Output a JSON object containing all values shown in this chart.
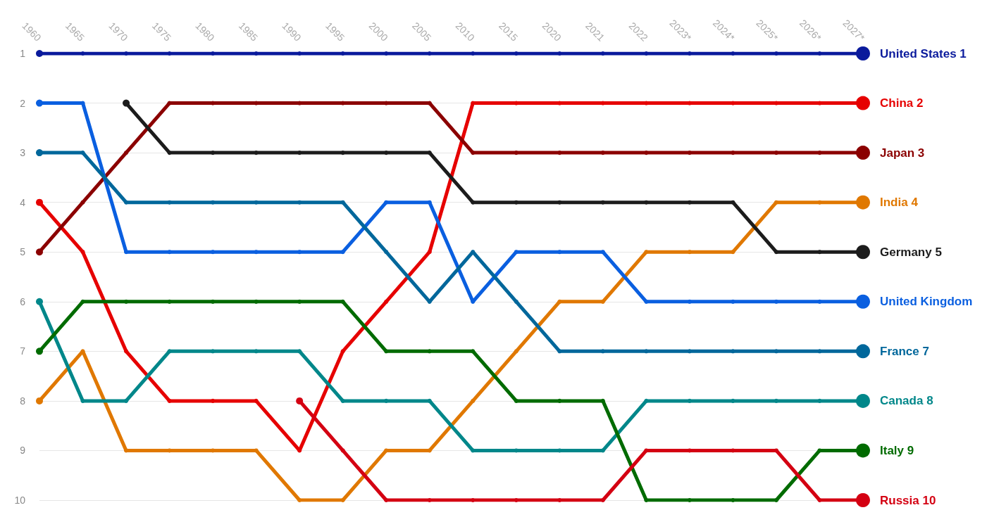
{
  "chart_data": {
    "type": "line",
    "categories": [
      "1960",
      "1965",
      "1970",
      "1975",
      "1980",
      "1985",
      "1990",
      "1995",
      "2000",
      "2005",
      "2010",
      "2015",
      "2020",
      "2021",
      "2022",
      "2023*",
      "2024*",
      "2025*",
      "2026*",
      "2027*"
    ],
    "ylim": [
      10,
      1
    ],
    "yticks": [
      1,
      2,
      3,
      4,
      5,
      6,
      7,
      8,
      9,
      10
    ],
    "grid": "y",
    "marker": "circle",
    "line_style": "solid",
    "legend": false,
    "series": [
      {
        "name": "United States",
        "color": "#0a1a9c",
        "values": [
          1,
          1,
          1,
          1,
          1,
          1,
          1,
          1,
          1,
          1,
          1,
          1,
          1,
          1,
          1,
          1,
          1,
          1,
          1,
          1
        ],
        "value_labels": [
          null,
          null,
          null,
          null,
          null,
          null,
          null,
          null,
          null,
          null,
          null,
          null,
          null,
          null,
          null,
          null,
          null,
          null,
          null,
          "1"
        ]
      },
      {
        "name": "China",
        "color": "#e60000",
        "values": [
          4,
          5,
          7,
          8,
          8,
          8,
          9,
          7,
          6,
          5,
          2,
          2,
          2,
          2,
          2,
          2,
          2,
          2,
          2,
          2
        ],
        "value_labels": [
          null,
          null,
          null,
          null,
          null,
          null,
          null,
          null,
          null,
          null,
          null,
          null,
          null,
          null,
          null,
          null,
          null,
          null,
          null,
          "2"
        ]
      },
      {
        "name": "Japan",
        "color": "#8b0000",
        "values": [
          5,
          4,
          3,
          2,
          2,
          2,
          2,
          2,
          2,
          2,
          3,
          3,
          3,
          3,
          3,
          3,
          3,
          3,
          3,
          3
        ],
        "value_labels": [
          null,
          null,
          null,
          null,
          null,
          null,
          null,
          null,
          null,
          null,
          null,
          null,
          null,
          null,
          null,
          null,
          null,
          null,
          null,
          "3"
        ]
      },
      {
        "name": "India",
        "color": "#e07800",
        "values": [
          8,
          7,
          9,
          9,
          9,
          9,
          10,
          10,
          9,
          9,
          8,
          7,
          6,
          6,
          5,
          5,
          5,
          4,
          4,
          4
        ],
        "value_labels": [
          null,
          null,
          null,
          null,
          null,
          null,
          null,
          null,
          null,
          null,
          null,
          null,
          null,
          null,
          null,
          null,
          null,
          null,
          null,
          "4"
        ]
      },
      {
        "name": "Germany",
        "color": "#1c1c1c",
        "values": [
          null,
          null,
          2,
          3,
          3,
          3,
          3,
          3,
          3,
          3,
          4,
          4,
          4,
          4,
          4,
          4,
          4,
          5,
          5,
          5
        ],
        "value_labels": [
          null,
          null,
          null,
          null,
          null,
          null,
          null,
          null,
          null,
          null,
          null,
          null,
          null,
          null,
          null,
          null,
          null,
          null,
          null,
          "5"
        ]
      },
      {
        "name": "United Kingdom",
        "color": "#0a5fe0",
        "values": [
          2,
          2,
          5,
          5,
          5,
          5,
          5,
          5,
          4,
          4,
          6,
          5,
          5,
          5,
          6,
          6,
          6,
          6,
          6,
          6
        ],
        "value_labels": [
          null,
          null,
          null,
          null,
          null,
          null,
          null,
          null,
          null,
          null,
          null,
          null,
          null,
          null,
          null,
          null,
          null,
          null,
          null,
          null
        ]
      },
      {
        "name": "France",
        "color": "#00679b",
        "values": [
          3,
          3,
          4,
          4,
          4,
          4,
          4,
          4,
          5,
          6,
          5,
          6,
          7,
          7,
          7,
          7,
          7,
          7,
          7,
          7
        ],
        "value_labels": [
          null,
          null,
          null,
          null,
          null,
          null,
          null,
          null,
          null,
          null,
          null,
          null,
          null,
          null,
          null,
          null,
          null,
          null,
          null,
          "7"
        ]
      },
      {
        "name": "Canada",
        "color": "#00878a",
        "values": [
          6,
          8,
          8,
          7,
          7,
          7,
          7,
          8,
          8,
          8,
          9,
          9,
          9,
          9,
          8,
          8,
          8,
          8,
          8,
          8
        ],
        "value_labels": [
          null,
          null,
          null,
          null,
          null,
          null,
          null,
          null,
          null,
          null,
          null,
          null,
          null,
          null,
          null,
          null,
          null,
          null,
          null,
          "8"
        ]
      },
      {
        "name": "Italy",
        "color": "#006b00",
        "values": [
          7,
          6,
          6,
          6,
          6,
          6,
          6,
          6,
          7,
          7,
          7,
          8,
          8,
          8,
          10,
          10,
          10,
          10,
          9,
          9
        ],
        "value_labels": [
          null,
          null,
          null,
          null,
          null,
          null,
          null,
          null,
          null,
          null,
          null,
          null,
          null,
          null,
          null,
          null,
          null,
          null,
          null,
          "9"
        ]
      },
      {
        "name": "Russia",
        "color": "#d40012",
        "values": [
          null,
          null,
          null,
          null,
          null,
          null,
          8,
          9,
          10,
          10,
          10,
          10,
          10,
          10,
          9,
          9,
          9,
          9,
          10,
          10
        ],
        "value_labels": [
          null,
          null,
          null,
          null,
          null,
          null,
          null,
          null,
          null,
          null,
          null,
          null,
          null,
          null,
          null,
          null,
          null,
          null,
          null,
          "10"
        ]
      }
    ]
  }
}
